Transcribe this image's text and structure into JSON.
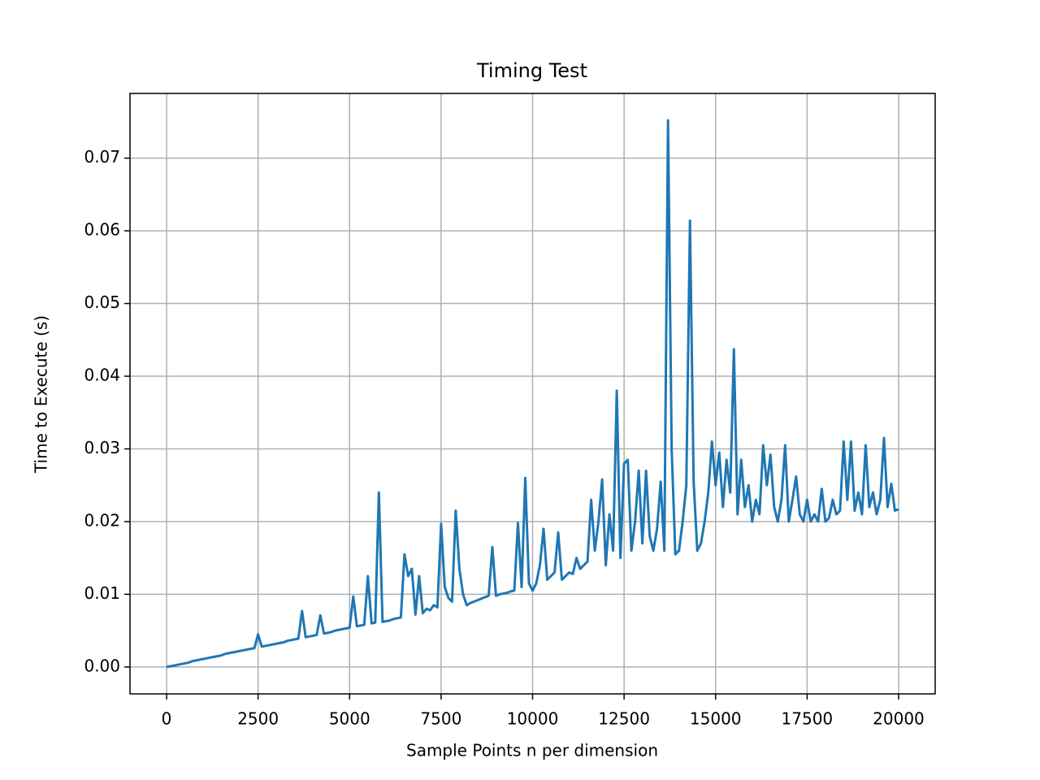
{
  "chart_data": {
    "type": "line",
    "title": "Timing Test",
    "xlabel": "Sample Points n per dimension",
    "ylabel": "Time to Execute (s)",
    "xlim": [
      -1000,
      21000
    ],
    "xticks": [
      0,
      2500,
      5000,
      7500,
      10000,
      12500,
      15000,
      17500,
      20000
    ],
    "ylim": [
      -0.0037,
      0.0789
    ],
    "yticks": [
      {
        "value": 0,
        "label": "0.00"
      },
      0.01,
      0.02,
      0.03,
      0.04,
      0.05,
      0.06,
      0.07
    ],
    "grid": true,
    "series": [
      {
        "color": "#1f77b4",
        "x": [
          0,
          100,
          200,
          300,
          400,
          500,
          600,
          700,
          800,
          900,
          1000,
          1100,
          1200,
          1300,
          1400,
          1500,
          1600,
          1700,
          1800,
          1900,
          2000,
          2100,
          2200,
          2300,
          2400,
          2500,
          2600,
          2700,
          2800,
          2900,
          3000,
          3100,
          3200,
          3300,
          3400,
          3500,
          3600,
          3700,
          3800,
          3900,
          4000,
          4100,
          4200,
          4300,
          4400,
          4500,
          4600,
          4700,
          4800,
          4900,
          5000,
          5100,
          5200,
          5300,
          5400,
          5500,
          5600,
          5700,
          5800,
          5900,
          6000,
          6100,
          6200,
          6300,
          6400,
          6500,
          6600,
          6700,
          6800,
          6900,
          7000,
          7100,
          7200,
          7300,
          7400,
          7500,
          7600,
          7700,
          7800,
          7900,
          8000,
          8100,
          8200,
          8300,
          8400,
          8500,
          8600,
          8700,
          8800,
          8900,
          9000,
          9100,
          9200,
          9300,
          9400,
          9500,
          9600,
          9700,
          9800,
          9900,
          10000,
          10100,
          10200,
          10300,
          10400,
          10500,
          10600,
          10700,
          10800,
          10900,
          11000,
          11100,
          11200,
          11300,
          11400,
          11500,
          11600,
          11700,
          11800,
          11900,
          12000,
          12100,
          12200,
          12300,
          12400,
          12500,
          12600,
          12700,
          12800,
          12900,
          13000,
          13100,
          13200,
          13300,
          13400,
          13500,
          13600,
          13700,
          13800,
          13900,
          14000,
          14100,
          14200,
          14300,
          14400,
          14500,
          14600,
          14700,
          14800,
          14900,
          15000,
          15100,
          15200,
          15300,
          15400,
          15500,
          15600,
          15700,
          15800,
          15900,
          16000,
          16100,
          16200,
          16300,
          16400,
          16500,
          16600,
          16700,
          16800,
          16900,
          17000,
          17100,
          17200,
          17300,
          17400,
          17500,
          17600,
          17700,
          17800,
          17900,
          18000,
          18100,
          18200,
          18300,
          18400,
          18500,
          18600,
          18700,
          18800,
          18900,
          19000,
          19100,
          19200,
          19300,
          19400,
          19500,
          19600,
          19700,
          19800,
          19900,
          20000
        ],
        "values": [
          0.0,
          0.0001,
          0.0002,
          0.0003,
          0.0004,
          0.0005,
          0.0006,
          0.0008,
          0.0009,
          0.001,
          0.0011,
          0.0012,
          0.0013,
          0.0014,
          0.0015,
          0.0016,
          0.0018,
          0.0019,
          0.002,
          0.0021,
          0.0022,
          0.0023,
          0.0024,
          0.0025,
          0.0026,
          0.0045,
          0.0028,
          0.0029,
          0.003,
          0.0031,
          0.0032,
          0.0033,
          0.0034,
          0.0036,
          0.0037,
          0.0038,
          0.0039,
          0.0077,
          0.0041,
          0.0042,
          0.0043,
          0.0044,
          0.0071,
          0.0046,
          0.0047,
          0.0048,
          0.005,
          0.0051,
          0.0052,
          0.0053,
          0.0054,
          0.0097,
          0.0056,
          0.0057,
          0.0058,
          0.0125,
          0.006,
          0.0061,
          0.024,
          0.0062,
          0.0063,
          0.0064,
          0.0066,
          0.0067,
          0.0068,
          0.0155,
          0.0125,
          0.0135,
          0.0072,
          0.0125,
          0.0074,
          0.008,
          0.0078,
          0.0085,
          0.0082,
          0.0197,
          0.011,
          0.0095,
          0.009,
          0.0215,
          0.0135,
          0.01,
          0.0085,
          0.0088,
          0.009,
          0.0092,
          0.0094,
          0.0096,
          0.0098,
          0.0165,
          0.0098,
          0.01,
          0.0101,
          0.0102,
          0.0104,
          0.0105,
          0.0198,
          0.011,
          0.026,
          0.0115,
          0.0105,
          0.0115,
          0.014,
          0.019,
          0.012,
          0.0125,
          0.013,
          0.0185,
          0.012,
          0.0125,
          0.013,
          0.0128,
          0.015,
          0.0135,
          0.014,
          0.0145,
          0.023,
          0.016,
          0.02,
          0.0258,
          0.014,
          0.021,
          0.016,
          0.038,
          0.015,
          0.028,
          0.0285,
          0.016,
          0.02,
          0.027,
          0.017,
          0.027,
          0.018,
          0.016,
          0.019,
          0.0255,
          0.016,
          0.0752,
          0.03,
          0.0155,
          0.016,
          0.02,
          0.025,
          0.0614,
          0.0255,
          0.016,
          0.017,
          0.02,
          0.024,
          0.031,
          0.025,
          0.0295,
          0.022,
          0.0285,
          0.024,
          0.0437,
          0.021,
          0.0285,
          0.022,
          0.025,
          0.02,
          0.023,
          0.021,
          0.0305,
          0.025,
          0.0292,
          0.022,
          0.02,
          0.023,
          0.0305,
          0.02,
          0.023,
          0.0262,
          0.021,
          0.02,
          0.023,
          0.02,
          0.021,
          0.02,
          0.0245,
          0.02,
          0.0205,
          0.023,
          0.021,
          0.0215,
          0.031,
          0.023,
          0.031,
          0.0215,
          0.024,
          0.021,
          0.0305,
          0.022,
          0.024,
          0.021,
          0.023,
          0.0315,
          0.022,
          0.0252,
          0.0215,
          0.0217
        ]
      }
    ]
  }
}
